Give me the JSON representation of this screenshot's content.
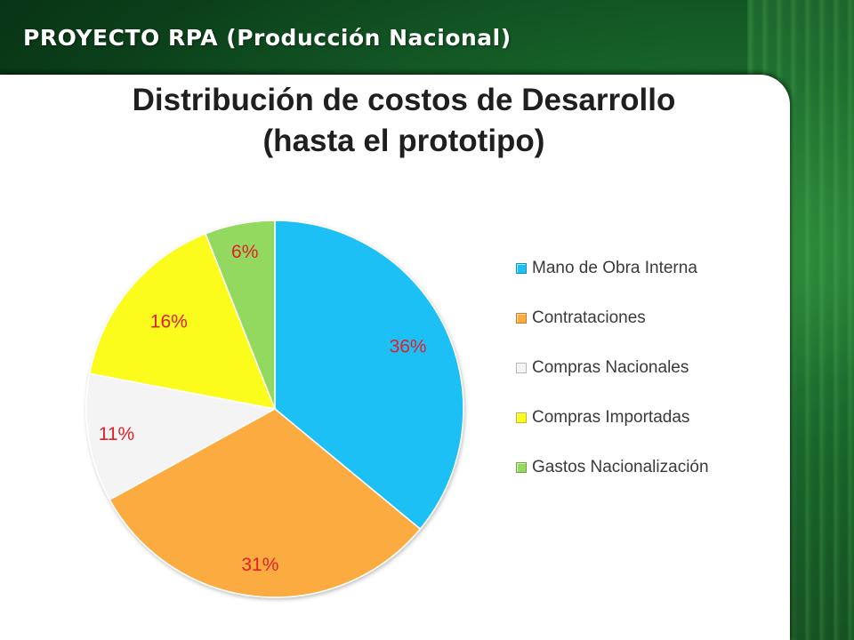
{
  "header": {
    "title": "PROYECTO RPA (Producción Nacional)"
  },
  "chart_data": {
    "type": "pie",
    "title_lines": [
      "Distribución de costos de Desarrollo",
      "(hasta el prototipo)"
    ],
    "categories": [
      "Mano de Obra Interna",
      "Contrataciones",
      "Compras Nacionales",
      "Compras Importadas",
      "Gastos Nacionalización"
    ],
    "values": [
      36,
      31,
      11,
      16,
      6
    ],
    "data_labels": [
      "36%",
      "31%",
      "11%",
      "16%",
      "6%"
    ],
    "colors": [
      "#1ec0f5",
      "#fbab3f",
      "#f4f4f4",
      "#fbfb1c",
      "#94d95e"
    ],
    "label_color": "#e0202a",
    "legend_position": "right",
    "start_angle_deg": 0,
    "direction": "clockwise"
  }
}
